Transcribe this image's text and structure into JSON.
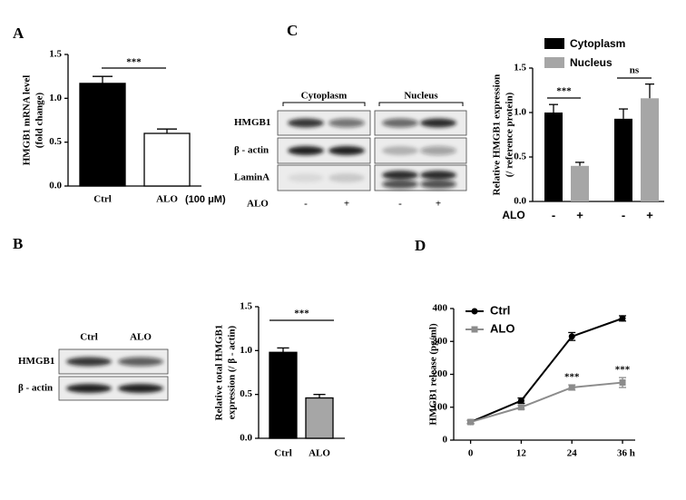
{
  "panel_labels": [
    "A",
    "B",
    "C",
    "D"
  ],
  "chart_data": [
    {
      "type": "bar",
      "ylabel": [
        "HMGB1 mRNA level",
        "(fold change)"
      ],
      "categories": [
        "Ctrl",
        "ALO"
      ],
      "unit_note": "(100 μM)",
      "values": [
        1.17,
        0.6
      ],
      "errors": [
        0.08,
        0.05
      ],
      "colors": [
        "#000000",
        "#ffffff"
      ],
      "significance": "***",
      "ylim": [
        0,
        1.5
      ],
      "yticks": [
        {
          "value": 0,
          "label": "0.0"
        },
        {
          "value": 0.5,
          "label": "0.5"
        },
        {
          "value": 1,
          "label": "1.0"
        },
        {
          "value": 1.5,
          "label": "1.5"
        }
      ]
    },
    {
      "type": "grouped_bar",
      "ylabel": [
        "Relative HMGB1 expression",
        "(/ reference protein)"
      ],
      "xlabel": "ALO",
      "categories": [
        null,
        null
      ],
      "bar_labels": [
        [
          "-",
          "+"
        ],
        [
          "-",
          "+"
        ]
      ],
      "series": [
        {
          "name": "Cytoplasm",
          "color": "#000000",
          "values": [
            1.0,
            0.93
          ],
          "errors": [
            0.09,
            0.11
          ]
        },
        {
          "name": "Nucleus",
          "color": "#a6a6a6",
          "values": [
            0.4,
            1.16
          ],
          "errors": [
            0.04,
            0.16
          ]
        }
      ],
      "significance": [
        "***",
        "ns"
      ],
      "ylim": [
        0,
        1.5
      ],
      "yticks": [
        {
          "value": 0,
          "label": "0.0"
        },
        {
          "value": 0.5,
          "label": "0.5"
        },
        {
          "value": 1,
          "label": "1.0"
        },
        {
          "value": 1.5,
          "label": "1.5"
        }
      ]
    },
    {
      "type": "bar",
      "ylabel": [
        "Relative total HMGB1",
        "expression (/ β - actin)"
      ],
      "categories": [
        "Ctrl",
        "ALO"
      ],
      "values": [
        0.98,
        0.46
      ],
      "errors": [
        0.05,
        0.04
      ],
      "colors": [
        "#000000",
        "#a6a6a6"
      ],
      "significance": "***",
      "ylim": [
        0,
        1.5
      ],
      "yticks": [
        {
          "value": 0,
          "label": "0.0"
        },
        {
          "value": 0.5,
          "label": "0.5"
        },
        {
          "value": 1,
          "label": "1.0"
        },
        {
          "value": 1.5,
          "label": "1.5"
        }
      ]
    },
    {
      "type": "line",
      "ylabel": "HMGB1 release (pg/ml)",
      "x": [
        0,
        12,
        24,
        36
      ],
      "series": [
        {
          "name": "Ctrl",
          "color": "#000000",
          "values": [
            55,
            120,
            315,
            370
          ],
          "errors": [
            5,
            8,
            12,
            8
          ],
          "significance": [
            null,
            null,
            null,
            null
          ]
        },
        {
          "name": "ALO",
          "color": "#8c8c8c",
          "values": [
            55,
            100,
            160,
            175
          ],
          "errors": [
            4,
            6,
            8,
            15
          ],
          "significance": [
            null,
            null,
            "***",
            "***"
          ]
        }
      ],
      "xlim": [
        -4,
        39
      ],
      "xticks": [
        0,
        12,
        24,
        {
          "value": 36,
          "label": "36 h"
        }
      ],
      "ylim": [
        0,
        400
      ],
      "yticks": [
        0,
        100,
        200,
        300,
        400
      ]
    }
  ],
  "blots": [
    {
      "group_labels": [
        "Cytoplasm",
        "Nucleus"
      ],
      "rows": [
        "HMGB1",
        "β - actin",
        "LaminA"
      ],
      "treatment_label": "ALO",
      "lanes": [
        "-",
        "+",
        "-",
        "+"
      ]
    },
    {
      "lanes": [
        "Ctrl",
        "ALO"
      ],
      "rows": [
        "HMGB1",
        "β - actin"
      ]
    }
  ]
}
